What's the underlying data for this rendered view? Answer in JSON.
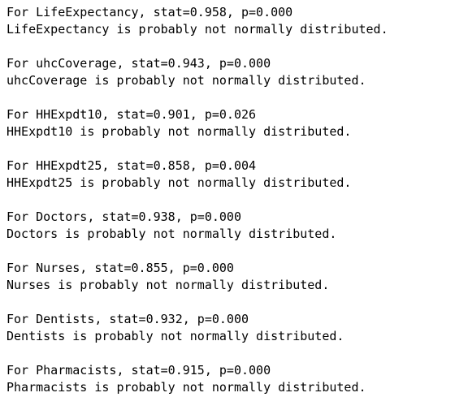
{
  "blocks": [
    {
      "line1": "For LifeExpectancy, stat=0.958, p=0.000",
      "line2": "LifeExpectancy is probably not normally distributed."
    },
    {
      "line1": "For uhcCoverage, stat=0.943, p=0.000",
      "line2": "uhcCoverage is probably not normally distributed."
    },
    {
      "line1": "For HHExpdt10, stat=0.901, p=0.026",
      "line2": "HHExpdt10 is probably not normally distributed."
    },
    {
      "line1": "For HHExpdt25, stat=0.858, p=0.004",
      "line2": "HHExpdt25 is probably not normally distributed."
    },
    {
      "line1": "For Doctors, stat=0.938, p=0.000",
      "line2": "Doctors is probably not normally distributed."
    },
    {
      "line1": "For Nurses, stat=0.855, p=0.000",
      "line2": "Nurses is probably not normally distributed."
    },
    {
      "line1": "For Dentists, stat=0.932, p=0.000",
      "line2": "Dentists is probably not normally distributed."
    },
    {
      "line1": "For Pharmacists, stat=0.915, p=0.000",
      "line2": "Pharmacists is probably not normally distributed."
    }
  ]
}
